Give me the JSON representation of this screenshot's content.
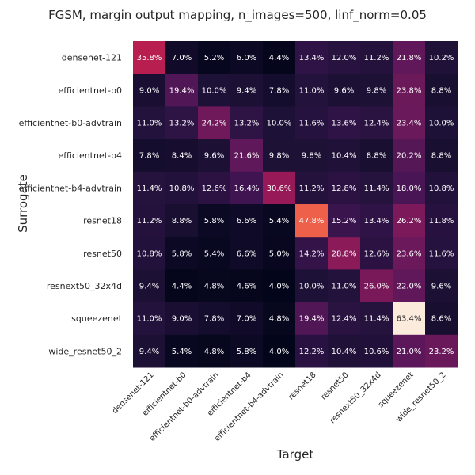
{
  "chart_data": {
    "type": "heatmap",
    "title": "FGSM, margin output mapping, n_images=500, linf_norm=0.05",
    "xlabel": "Target",
    "ylabel": "Surrogate",
    "x_categories": [
      "densenet-121",
      "efficientnet-b0",
      "efficientnet-b0-advtrain",
      "efficientnet-b4",
      "efficientnet-b4-advtrain",
      "resnet18",
      "resnet50",
      "resnext50_32x4d",
      "squeezenet",
      "wide_resnet50_2"
    ],
    "y_categories": [
      "densenet-121",
      "efficientnet-b0",
      "efficientnet-b0-advtrain",
      "efficientnet-b4",
      "efficientnet-b4-advtrain",
      "resnet18",
      "resnet50",
      "resnext50_32x4d",
      "squeezenet",
      "wide_resnet50_2"
    ],
    "values": [
      [
        35.8,
        7.0,
        5.2,
        6.0,
        4.4,
        13.4,
        12.0,
        11.2,
        21.8,
        10.2
      ],
      [
        9.0,
        19.4,
        10.0,
        9.4,
        7.8,
        11.0,
        9.6,
        9.8,
        23.8,
        8.8
      ],
      [
        11.0,
        13.2,
        24.2,
        13.2,
        10.0,
        11.6,
        13.6,
        12.4,
        23.4,
        10.0
      ],
      [
        7.8,
        8.4,
        9.6,
        21.6,
        9.8,
        9.8,
        10.4,
        8.8,
        20.2,
        8.8
      ],
      [
        11.4,
        10.8,
        12.6,
        16.4,
        30.6,
        11.2,
        12.8,
        11.4,
        18.0,
        10.8
      ],
      [
        11.2,
        8.8,
        5.8,
        6.6,
        5.4,
        47.8,
        15.2,
        13.4,
        26.2,
        11.8
      ],
      [
        10.8,
        5.8,
        5.4,
        6.6,
        5.0,
        14.2,
        28.8,
        12.6,
        23.6,
        11.6
      ],
      [
        9.4,
        4.4,
        4.8,
        4.6,
        4.0,
        10.0,
        11.0,
        26.0,
        22.0,
        9.6
      ],
      [
        11.0,
        9.0,
        7.8,
        7.0,
        4.8,
        19.4,
        12.4,
        11.4,
        63.4,
        8.6
      ],
      [
        9.4,
        5.4,
        4.8,
        5.8,
        4.0,
        12.2,
        10.4,
        10.6,
        21.0,
        23.2
      ]
    ],
    "value_format": "percent_1dp",
    "colormap": "rocket",
    "vmin": 4.0,
    "vmax": 63.4,
    "grid": false,
    "legend": "none"
  }
}
